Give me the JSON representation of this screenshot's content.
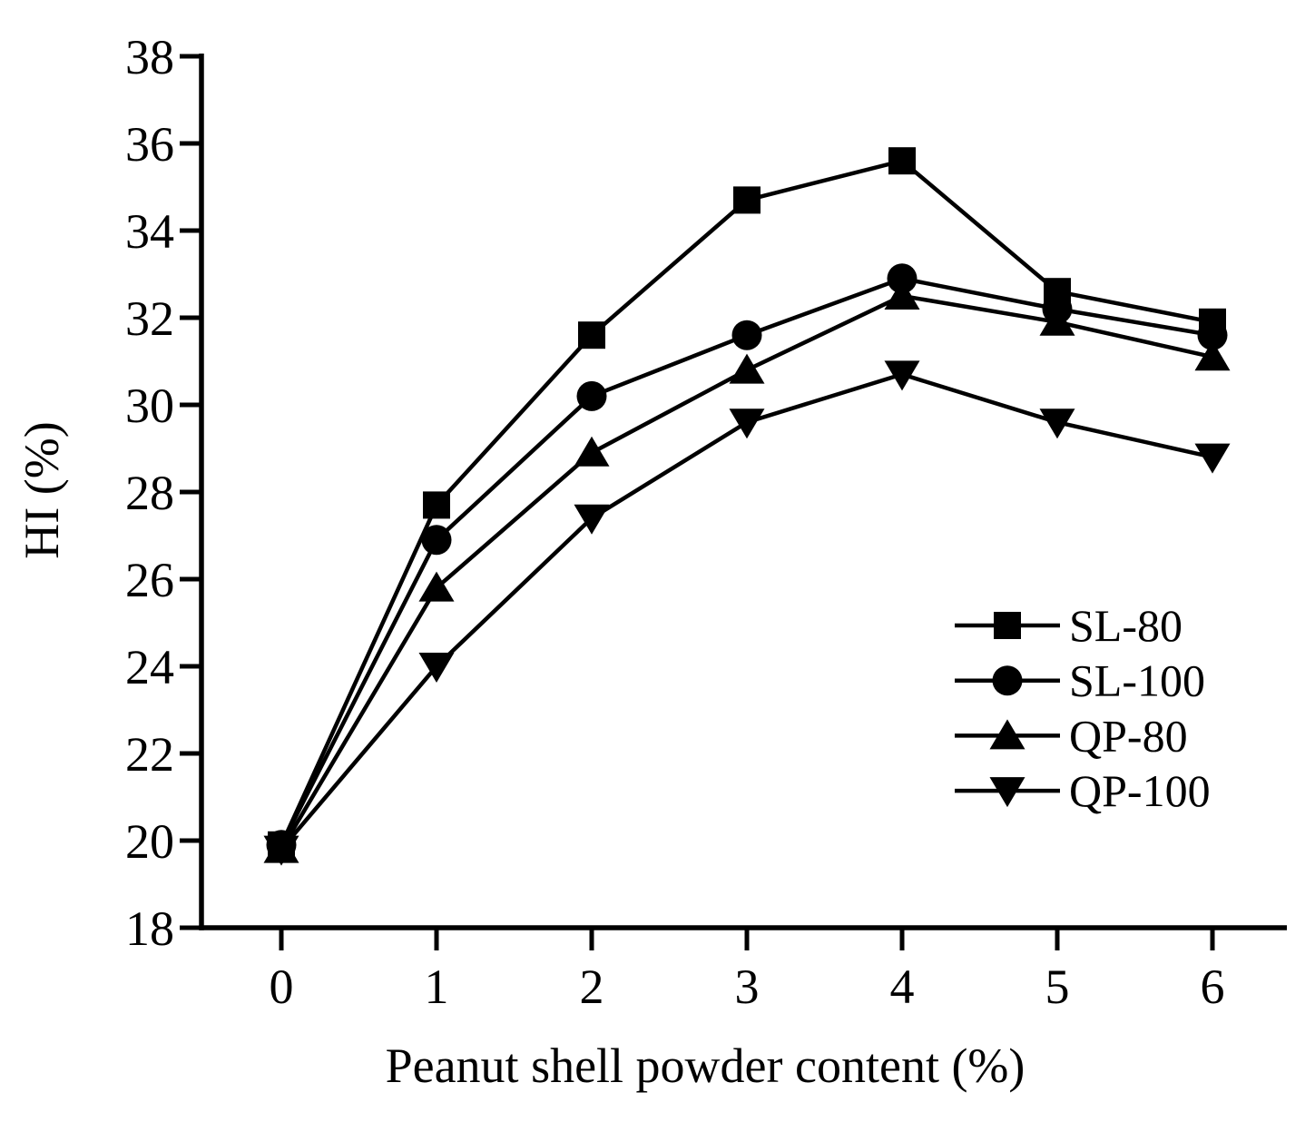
{
  "chart_data": {
    "type": "line",
    "title": "",
    "xlabel": "Peanut shell powder content (%)",
    "ylabel": "HI (%)",
    "x": [
      0,
      1,
      2,
      3,
      4,
      5,
      6
    ],
    "xticks": [
      0,
      1,
      2,
      3,
      4,
      5,
      6
    ],
    "yticks": [
      18,
      20,
      22,
      24,
      26,
      28,
      30,
      32,
      34,
      36,
      38
    ],
    "xlim": [
      -0.52,
      6.48
    ],
    "ylim": [
      18,
      38
    ],
    "grid": false,
    "line_color": "#000000",
    "background_color": "#ffffff",
    "legend_position": "inside-right-lower",
    "series": [
      {
        "name": "SL-80",
        "marker": "square",
        "color": "#000000",
        "values": [
          19.9,
          27.7,
          31.6,
          34.7,
          35.6,
          32.6,
          31.9
        ]
      },
      {
        "name": "SL-100",
        "marker": "circle",
        "color": "#000000",
        "values": [
          19.9,
          26.9,
          30.2,
          31.6,
          32.9,
          32.2,
          31.6
        ]
      },
      {
        "name": "QP-80",
        "marker": "triangle-up",
        "color": "#000000",
        "values": [
          19.8,
          25.8,
          28.9,
          30.8,
          32.5,
          31.9,
          31.1
        ]
      },
      {
        "name": "QP-100",
        "marker": "triangle-down",
        "color": "#000000",
        "values": [
          19.8,
          24.0,
          27.4,
          29.6,
          30.7,
          29.6,
          28.8
        ]
      }
    ]
  }
}
